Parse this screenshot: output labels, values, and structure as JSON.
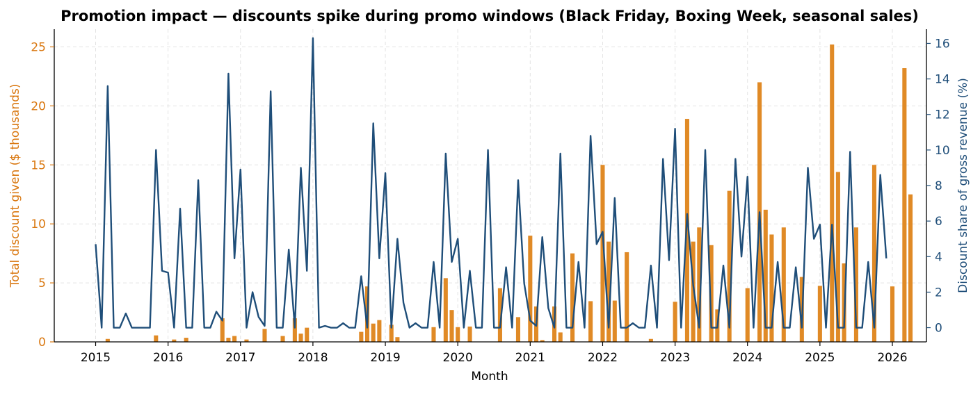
{
  "chart_data": {
    "type": "bar+line",
    "title": "Promotion impact — discounts spike during promo windows (Black Friday, Boxing Week, seasonal sales)",
    "xlabel": "Month",
    "ylabel_left": "Total discount given ($ thousands)",
    "ylabel_right": "Discount share of gross revenue (%)",
    "x_ticks": [
      "2015",
      "2016",
      "2017",
      "2018",
      "2019",
      "2020",
      "2021",
      "2022",
      "2023",
      "2024",
      "2025",
      "2026"
    ],
    "ylim_left": [
      0,
      26.5
    ],
    "yticks_left": [
      0,
      5,
      10,
      15,
      20,
      25
    ],
    "ylim_right": [
      -0.8,
      16.8
    ],
    "yticks_right": [
      0,
      2,
      4,
      6,
      8,
      10,
      12,
      14,
      16
    ],
    "grid": true,
    "colors": {
      "bars": "#E08A26",
      "line": "#1F4E79",
      "left_axis": "#D9770F",
      "right_axis": "#1F4E79"
    },
    "months_start": "2015-01",
    "series": [
      {
        "kind": "bar",
        "axis": "left",
        "values": [
          0,
          0,
          0.25,
          0,
          0,
          0,
          0,
          0,
          0,
          0,
          0.55,
          0,
          0,
          0.2,
          0,
          0.35,
          0,
          0,
          0,
          0,
          0,
          2.0,
          0.35,
          0.5,
          0,
          0.2,
          0,
          0,
          1.1,
          0,
          0,
          0.5,
          0,
          2.0,
          0.7,
          1.2,
          0,
          0,
          0,
          0,
          0,
          0,
          0,
          0,
          0.85,
          4.7,
          1.55,
          1.85,
          0,
          1.45,
          0.4,
          0,
          0,
          0,
          0,
          0,
          1.25,
          0,
          5.4,
          2.7,
          1.25,
          0,
          1.3,
          0,
          0,
          0,
          0,
          4.55,
          0,
          0,
          2.1,
          0,
          9.0,
          3.0,
          0.15,
          0,
          3.0,
          0.8,
          0,
          7.5,
          0,
          0,
          3.45,
          0,
          15.0,
          8.5,
          3.5,
          0,
          7.6,
          0,
          0,
          0,
          0.25,
          0,
          0,
          0,
          3.4,
          0,
          18.9,
          8.5,
          9.7,
          0,
          8.2,
          2.75,
          0,
          12.8,
          0,
          0,
          4.55,
          0,
          22.0,
          11.2,
          9.1,
          0,
          9.7,
          0,
          0,
          5.5,
          0,
          0,
          4.75,
          0,
          25.2,
          14.4,
          6.65,
          0,
          9.7,
          0,
          0,
          15.0,
          0,
          0,
          4.7,
          0,
          23.2,
          12.5
        ]
      },
      {
        "kind": "line",
        "axis": "right",
        "values": [
          4.7,
          0,
          13.6,
          0,
          0,
          0.8,
          0,
          0,
          0,
          0,
          10.0,
          3.2,
          3.1,
          0,
          6.7,
          0,
          0,
          8.3,
          0,
          0,
          0.9,
          0.4,
          14.3,
          3.9,
          8.9,
          0,
          2.0,
          0.6,
          0.1,
          13.3,
          0,
          0,
          4.4,
          0,
          9.0,
          3.2,
          16.3,
          0,
          0.1,
          0,
          0,
          0.25,
          0,
          0,
          2.9,
          0,
          11.5,
          3.9,
          8.7,
          0,
          5.0,
          1.4,
          0,
          0.25,
          0,
          0,
          3.7,
          0,
          9.8,
          3.7,
          5.0,
          0,
          3.2,
          0,
          0,
          10.0,
          0,
          0,
          3.4,
          0,
          8.3,
          2.5,
          0.4,
          0.1,
          5.1,
          1.1,
          0,
          9.8,
          0,
          0,
          3.7,
          0,
          10.8,
          4.7,
          5.4,
          0,
          7.3,
          0,
          0,
          0.25,
          0,
          0,
          3.5,
          0,
          9.5,
          3.8,
          11.2,
          0,
          6.4,
          2.4,
          0,
          10.0,
          0,
          0,
          3.5,
          0,
          9.5,
          4.0,
          8.5,
          0,
          6.5,
          0,
          0,
          3.7,
          0,
          0,
          3.4,
          0,
          9.0,
          5.0,
          5.8,
          0,
          5.8,
          0,
          0,
          9.9,
          0,
          0,
          3.7,
          0,
          8.6,
          3.9
        ]
      }
    ]
  }
}
